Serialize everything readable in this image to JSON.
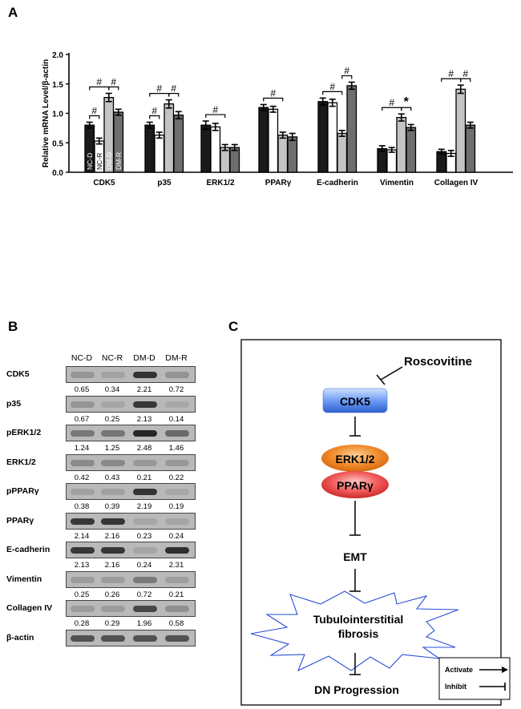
{
  "panels": {
    "a": "A",
    "b": "B",
    "c": "C"
  },
  "chart_data": {
    "type": "bar",
    "ylabel": "Relative mRNA Level/β-actin",
    "ylim": [
      0,
      2.0
    ],
    "yticks": [
      "0.0",
      "0.5",
      "1.0",
      "1.5",
      "2.0"
    ],
    "categories": [
      "CDK5",
      "p35",
      "ERK1/2",
      "PPARγ",
      "E-cadherin",
      "Vimentin",
      "Collagen IV"
    ],
    "series": [
      {
        "name": "NC-D",
        "color": "#1a1a1a",
        "values": [
          0.8,
          0.8,
          0.8,
          1.1,
          1.2,
          0.4,
          0.35
        ],
        "errors": [
          0.05,
          0.05,
          0.07,
          0.05,
          0.06,
          0.05,
          0.04
        ]
      },
      {
        "name": "NC-R",
        "color": "#ffffff",
        "values": [
          0.53,
          0.63,
          0.77,
          1.07,
          1.18,
          0.38,
          0.32
        ],
        "errors": [
          0.05,
          0.05,
          0.06,
          0.05,
          0.06,
          0.04,
          0.05
        ]
      },
      {
        "name": "DM-D",
        "color": "#c4c4c4",
        "values": [
          1.27,
          1.16,
          0.42,
          0.63,
          0.66,
          0.93,
          1.41
        ],
        "errors": [
          0.07,
          0.07,
          0.05,
          0.05,
          0.05,
          0.06,
          0.07
        ]
      },
      {
        "name": "DM-R",
        "color": "#6e6e6e",
        "values": [
          1.02,
          0.97,
          0.42,
          0.6,
          1.47,
          0.76,
          0.8
        ],
        "errors": [
          0.05,
          0.06,
          0.05,
          0.06,
          0.06,
          0.05,
          0.05
        ]
      }
    ],
    "annotations": [
      {
        "category": 0,
        "from": 0,
        "to": 1,
        "mark": "#"
      },
      {
        "category": 0,
        "from": 0,
        "to": 2,
        "mark": "#"
      },
      {
        "category": 0,
        "from": 2,
        "to": 3,
        "mark": "#"
      },
      {
        "category": 1,
        "from": 0,
        "to": 1,
        "mark": "#"
      },
      {
        "category": 1,
        "from": 0,
        "to": 2,
        "mark": "#"
      },
      {
        "category": 1,
        "from": 2,
        "to": 3,
        "mark": "#"
      },
      {
        "category": 2,
        "from": 0,
        "to": 2,
        "mark": "#"
      },
      {
        "category": 3,
        "from": 0,
        "to": 2,
        "mark": "#"
      },
      {
        "category": 4,
        "from": 0,
        "to": 2,
        "mark": "#"
      },
      {
        "category": 4,
        "from": 2,
        "to": 3,
        "mark": "#"
      },
      {
        "category": 5,
        "from": 0,
        "to": 2,
        "mark": "#"
      },
      {
        "category": 5,
        "from": 2,
        "to": 3,
        "mark": "*"
      },
      {
        "category": 6,
        "from": 0,
        "to": 2,
        "mark": "#"
      },
      {
        "category": 6,
        "from": 2,
        "to": 3,
        "mark": "#"
      }
    ]
  },
  "blot": {
    "lanes": [
      "NC-D",
      "NC-R",
      "DM-D",
      "DM-R"
    ],
    "rows": [
      {
        "name": "CDK5",
        "values": [
          "0.65",
          "0.34",
          "2.21",
          "0.72"
        ],
        "intensity": [
          0.65,
          0.34,
          2.21,
          0.72
        ]
      },
      {
        "name": "p35",
        "values": [
          "0.67",
          "0.25",
          "2.13",
          "0.14"
        ],
        "intensity": [
          0.67,
          0.25,
          2.13,
          0.14
        ]
      },
      {
        "name": "pERK1/2",
        "values": [
          "1.24",
          "1.25",
          "2.48",
          "1.46"
        ],
        "intensity": [
          1.24,
          1.25,
          2.48,
          1.46
        ]
      },
      {
        "name": "ERK1/2",
        "values": [
          "0.42",
          "0.43",
          "0.21",
          "0.22"
        ],
        "intensity": [
          0.9,
          0.9,
          0.6,
          0.6
        ]
      },
      {
        "name": "pPPARγ",
        "values": [
          "0.38",
          "0.39",
          "2.19",
          "0.19"
        ],
        "intensity": [
          0.38,
          0.39,
          2.19,
          0.19
        ]
      },
      {
        "name": "PPARγ",
        "values": [
          "2.14",
          "2.16",
          "0.23",
          "0.24"
        ],
        "intensity": [
          2.14,
          2.16,
          0.23,
          0.24
        ]
      },
      {
        "name": "E-cadherin",
        "values": [
          "2.13",
          "2.16",
          "0.24",
          "2.31"
        ],
        "intensity": [
          2.13,
          2.16,
          0.24,
          2.31
        ]
      },
      {
        "name": "Vimentin",
        "values": [
          "0.25",
          "0.26",
          "0.72",
          "0.21"
        ],
        "intensity": [
          0.5,
          0.5,
          1.2,
          0.45
        ]
      },
      {
        "name": "Collagen IV",
        "values": [
          "0.28",
          "0.29",
          "1.96",
          "0.58"
        ],
        "intensity": [
          0.5,
          0.5,
          1.96,
          0.8
        ]
      },
      {
        "name": "β-actin",
        "values": [],
        "intensity": [
          1.8,
          1.8,
          1.8,
          1.8
        ]
      }
    ]
  },
  "diagram": {
    "roscovitine": "Roscovitine",
    "cdk5": "CDK5",
    "erk": "ERK1/2",
    "ppar": "PPARγ",
    "emt": "EMT",
    "fibrosis_line1": "Tubulointerstitial",
    "fibrosis_line2": "fibrosis",
    "dn": "DN Progression",
    "legend_activate": "Activate",
    "legend_inhibit": "Inhibit"
  }
}
